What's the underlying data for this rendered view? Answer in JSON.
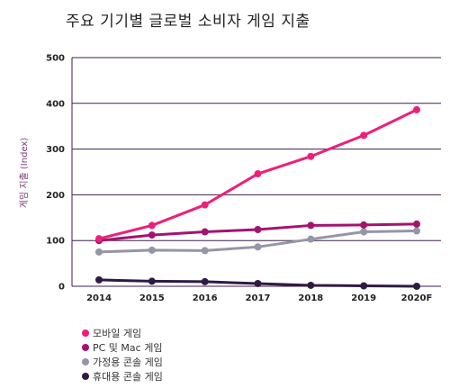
{
  "chart_data": {
    "type": "line",
    "title": "주요 기기별 글로벌 소비자 게임 지출",
    "ylabel": "게임 지출 (Index)",
    "xlabel": "",
    "categories": [
      "2014",
      "2015",
      "2016",
      "2017",
      "2018",
      "2019",
      "2020F"
    ],
    "ylim": [
      0,
      500
    ],
    "yticks": [
      0,
      100,
      200,
      300,
      400,
      500
    ],
    "grid": true,
    "legend_position": "bottom-left",
    "series": [
      {
        "name": "모바일 게임",
        "color": "#ee1f79",
        "values": [
          104,
          133,
          178,
          246,
          284,
          330,
          386
        ]
      },
      {
        "name": "PC 및 Mac 게임",
        "color": "#a4146e",
        "values": [
          100,
          112,
          119,
          124,
          133,
          134,
          136
        ]
      },
      {
        "name": "가정용 콘솔 게임",
        "color": "#9496a6",
        "values": [
          75,
          79,
          78,
          86,
          103,
          119,
          121
        ]
      },
      {
        "name": "휴대용 콘솔 게임",
        "color": "#2f1b42",
        "values": [
          14,
          11,
          10,
          6,
          2,
          1,
          0
        ]
      }
    ]
  }
}
